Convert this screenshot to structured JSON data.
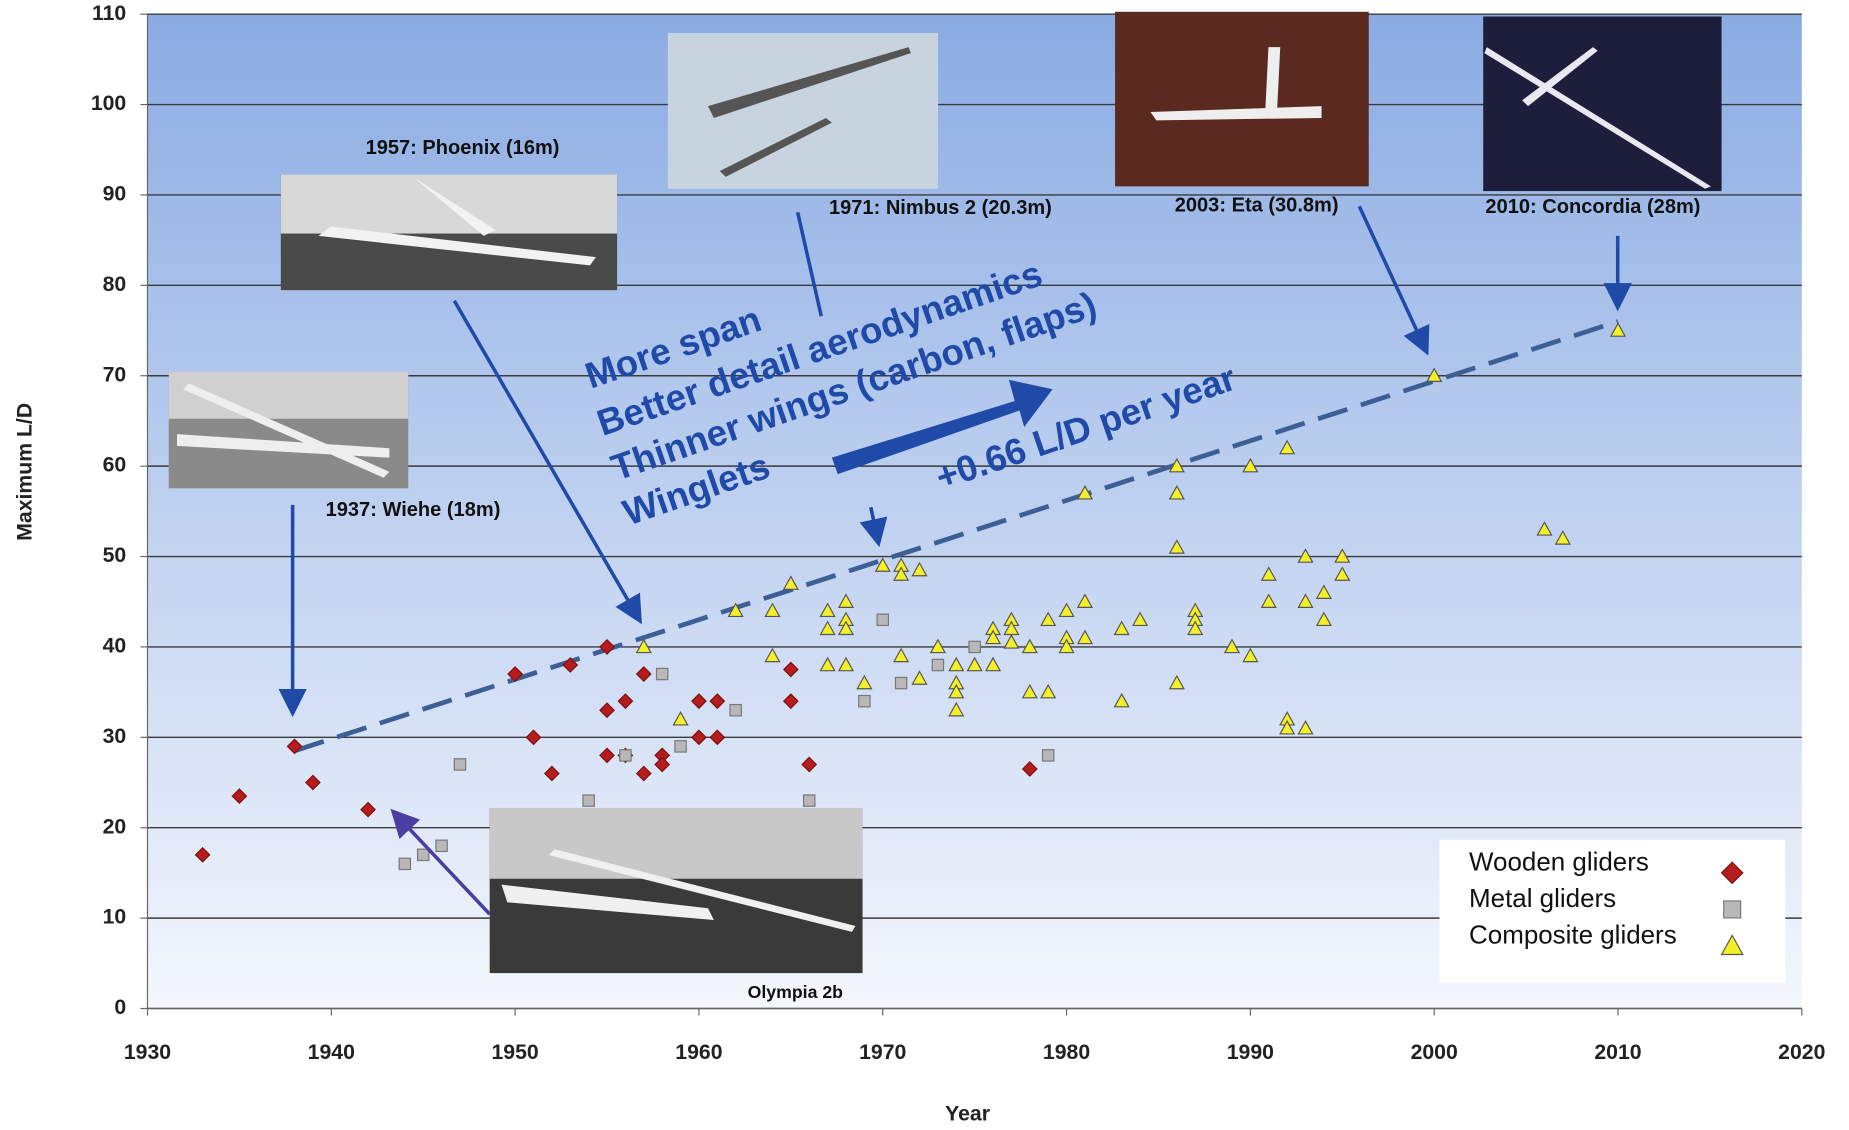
{
  "chart_data": {
    "type": "scatter",
    "x_label": "Year",
    "y_label": "Maximum L/D",
    "xlim": [
      1930,
      2020
    ],
    "xticks": [
      1930,
      1940,
      1950,
      1960,
      1970,
      1980,
      1990,
      2000,
      2010,
      2020
    ],
    "ylim": [
      0,
      110
    ],
    "yticks": [
      0,
      10,
      20,
      30,
      40,
      50,
      60,
      70,
      80,
      90,
      100,
      110
    ],
    "grid": true,
    "legend": "lower right",
    "series": [
      {
        "name": "Wooden gliders",
        "color": "#b71c1c",
        "marker": "diamond",
        "x": [
          1933,
          1935,
          1938,
          1939,
          1942,
          1950,
          1951,
          1952,
          1953,
          1955,
          1955,
          1955,
          1956,
          1956,
          1957,
          1957,
          1958,
          1958,
          1960,
          1960,
          1961,
          1961,
          1965,
          1965,
          1966,
          1978
        ],
        "values": [
          17,
          23.5,
          29,
          25,
          22,
          37,
          30,
          26,
          38,
          40,
          33,
          28,
          34,
          28,
          37,
          26,
          28,
          27,
          34,
          30,
          34,
          30,
          37.5,
          34,
          27,
          26.5
        ]
      },
      {
        "name": "Metal gliders",
        "color": "#b8b8b8",
        "marker": "square",
        "x": [
          1944,
          1945,
          1946,
          1947,
          1954,
          1956,
          1958,
          1959,
          1962,
          1966,
          1969,
          1970,
          1971,
          1973,
          1975,
          1979
        ],
        "values": [
          16,
          17,
          18,
          27,
          23,
          28,
          37,
          29,
          33,
          23,
          34,
          43,
          36,
          38,
          40,
          28
        ]
      },
      {
        "name": "Composite gliders",
        "color": "#f5ef2a",
        "marker": "triangle",
        "x": [
          1957,
          1959,
          1962,
          1964,
          1964,
          1965,
          1967,
          1967,
          1967,
          1968,
          1968,
          1968,
          1968,
          1969,
          1970,
          1971,
          1971,
          1971,
          1972,
          1972,
          1973,
          1974,
          1974,
          1974,
          1974,
          1975,
          1976,
          1976,
          1976,
          1977,
          1977,
          1977,
          1978,
          1978,
          1979,
          1979,
          1980,
          1980,
          1980,
          1981,
          1981,
          1981,
          1983,
          1983,
          1984,
          1986,
          1986,
          1986,
          1986,
          1987,
          1987,
          1987,
          1989,
          1990,
          1990,
          1991,
          1991,
          1992,
          1992,
          1992,
          1993,
          1993,
          1993,
          1994,
          1994,
          1995,
          1995,
          2000,
          2006,
          2007,
          2010
        ],
        "values": [
          40,
          32,
          44,
          44,
          39,
          47,
          44,
          42,
          38,
          45,
          43,
          42,
          38,
          36,
          49,
          49,
          48,
          39,
          48.5,
          36.5,
          40,
          38,
          36,
          35,
          33,
          38,
          42,
          41,
          38,
          43,
          42,
          40.5,
          40,
          35,
          43,
          35,
          44,
          41,
          40,
          57,
          45,
          41,
          42,
          34,
          43,
          60,
          57,
          51,
          36,
          44,
          43,
          42,
          40,
          60,
          39,
          48,
          45,
          62,
          32,
          31,
          50,
          45,
          31,
          46,
          43,
          50,
          48,
          70,
          53,
          52,
          75
        ]
      }
    ],
    "trend_line": {
      "x": [
        1938,
        2010
      ],
      "values": [
        28.5,
        76
      ],
      "color": "#3d5f96"
    },
    "annotations": [
      "1957: Phoenix (16m)",
      "1971: Nimbus 2 (20.3m)",
      "2003: Eta (30.8m)",
      "2010: Concordia (28m)",
      "1937: Wiehe (18m)",
      "Olympia 2b"
    ],
    "callouts": [
      "More span",
      "Better detail aerodynamics",
      "Thinner wings (carbon, flaps)",
      "Winglets",
      "+0.66 L/D per year"
    ]
  }
}
